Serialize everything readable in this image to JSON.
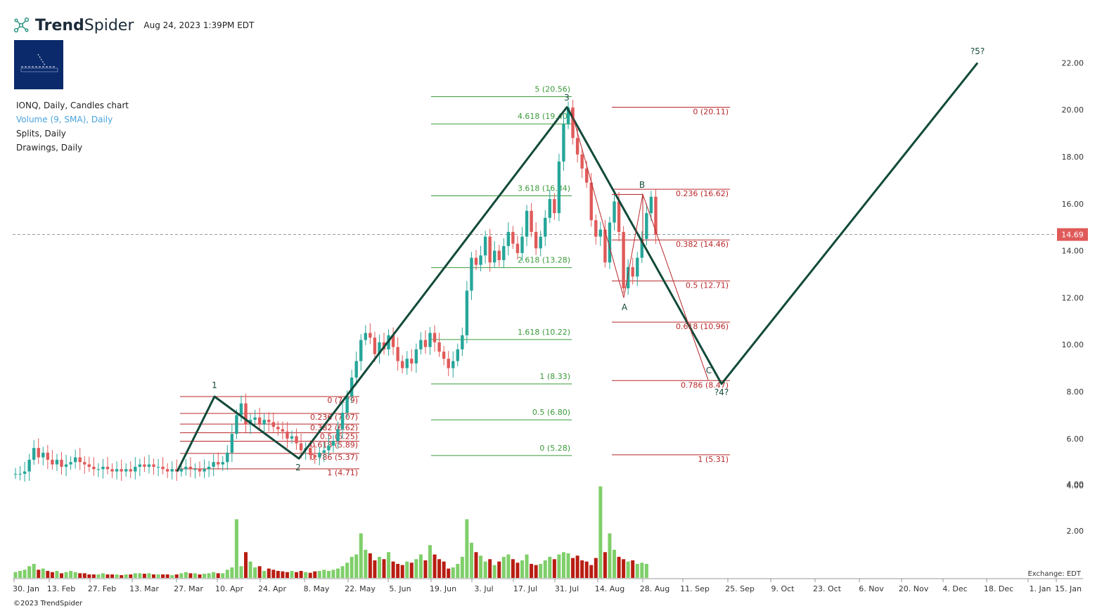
{
  "header": {
    "brand_bold": "Trend",
    "brand_regular": "Spider",
    "datetime": "Aug 24, 2023 1:39PM EDT"
  },
  "legend": {
    "symbol_line": "IONQ, Daily, Candles chart",
    "volume_line": "Volume (9, SMA), Daily",
    "splits_line": "Splits, Daily",
    "drawings_line": "Drawings, Daily"
  },
  "footer": {
    "copyright": "©2023 TrendSpider",
    "exchange": "Exchange: EDT"
  },
  "colors": {
    "up": "#26a69a",
    "down": "#e05a5a",
    "vol_up": "#7fcf6a",
    "vol_down": "#b81d12",
    "wave_line": "#124a3a",
    "fib_green": "#3a9a3a",
    "fib_red": "#b8282a",
    "price_tag": "#e05a5a"
  },
  "chart_data": {
    "type": "candlestick",
    "symbol": "IONQ",
    "interval": "Daily",
    "y_axis": {
      "range": [
        3.0,
        23.0
      ],
      "ticks": [
        "4.00",
        "6.00",
        "8.00",
        "10.00",
        "12.00",
        "14.00",
        "16.00",
        "18.00",
        "20.00",
        "22.00"
      ]
    },
    "x_axis": {
      "labels": [
        "30. Jan",
        "13. Feb",
        "27. Feb",
        "13. Mar",
        "27. Mar",
        "10. Apr",
        "24. Apr",
        "8. May",
        "22. May",
        "5. Jun",
        "19. Jun",
        "3. Jul",
        "17. Jul",
        "31. Jul",
        "14. Aug",
        "28. Aug",
        "11. Sep",
        "25. Sep",
        "9. Oct",
        "23. Oct",
        "6. Nov",
        "20. Nov",
        "4. Dec",
        "18. Dec",
        "1. Jan",
        "15. Jan"
      ]
    },
    "last_price": "14.69",
    "volume_axis": {
      "ticks": [
        "2.00",
        "4.00"
      ]
    },
    "candles_close": [
      4.5,
      4.5,
      4.6,
      5.1,
      5.6,
      5.2,
      5.4,
      5.1,
      4.9,
      5.1,
      4.8,
      4.9,
      5.0,
      5.2,
      5.0,
      4.9,
      4.8,
      4.7,
      4.7,
      4.8,
      4.7,
      4.6,
      4.7,
      4.6,
      4.7,
      4.6,
      4.8,
      4.9,
      4.8,
      4.9,
      4.8,
      4.8,
      4.7,
      4.6,
      4.7,
      4.6,
      4.7,
      4.8,
      4.7,
      4.7,
      4.6,
      4.7,
      4.8,
      5.0,
      4.9,
      5.0,
      5.4,
      6.2,
      7.0,
      7.5,
      6.6,
      6.8,
      6.9,
      6.6,
      6.8,
      6.7,
      6.5,
      6.4,
      6.3,
      6.0,
      6.1,
      5.8,
      5.5,
      5.6,
      5.3,
      5.2,
      5.4,
      5.5,
      5.7,
      5.9,
      6.4,
      7.1,
      7.8,
      8.6,
      9.3,
      10.2,
      10.5,
      10.3,
      9.6,
      10.1,
      9.8,
      10.4,
      9.9,
      9.3,
      9.0,
      9.4,
      9.2,
      9.8,
      10.2,
      9.9,
      10.5,
      10.1,
      9.7,
      9.4,
      9.0,
      9.3,
      9.8,
      10.4,
      12.3,
      13.7,
      13.4,
      13.8,
      14.6,
      13.5,
      14.0,
      13.6,
      14.2,
      14.8,
      14.3,
      13.9,
      14.6,
      15.7,
      14.8,
      14.1,
      14.6,
      15.4,
      16.2,
      15.6,
      17.8,
      19.4,
      20.1,
      18.8,
      18.1,
      17.5,
      16.9,
      15.3,
      14.6,
      14.9,
      13.5,
      15.2,
      16.1,
      14.8,
      12.4,
      13.3,
      12.9,
      13.7,
      14.5,
      15.6,
      16.3,
      14.69
    ],
    "volume": [
      0.25,
      0.3,
      0.35,
      0.5,
      0.6,
      0.35,
      0.4,
      0.3,
      0.25,
      0.3,
      0.2,
      0.25,
      0.3,
      0.25,
      0.2,
      0.2,
      0.15,
      0.15,
      0.15,
      0.2,
      0.15,
      0.15,
      0.15,
      0.12,
      0.15,
      0.15,
      0.2,
      0.2,
      0.18,
      0.2,
      0.15,
      0.15,
      0.15,
      0.15,
      0.12,
      0.15,
      0.2,
      0.25,
      0.2,
      0.2,
      0.15,
      0.18,
      0.2,
      0.25,
      0.2,
      0.2,
      0.35,
      0.45,
      2.5,
      0.5,
      1.1,
      0.7,
      0.45,
      0.5,
      0.3,
      0.4,
      0.35,
      0.3,
      0.28,
      0.25,
      0.3,
      0.25,
      0.3,
      0.25,
      0.22,
      0.28,
      0.3,
      0.35,
      0.3,
      0.35,
      0.4,
      0.5,
      0.65,
      0.9,
      1.0,
      1.9,
      1.2,
      1.05,
      0.75,
      0.9,
      0.8,
      1.1,
      0.7,
      0.6,
      0.55,
      0.7,
      0.65,
      0.8,
      1.0,
      0.75,
      1.4,
      1.0,
      0.8,
      0.7,
      0.4,
      0.45,
      0.6,
      0.9,
      2.5,
      1.5,
      1.1,
      0.95,
      0.7,
      0.8,
      0.55,
      0.7,
      0.9,
      1.0,
      0.8,
      0.65,
      0.75,
      1.0,
      0.6,
      0.55,
      0.6,
      0.75,
      0.9,
      0.8,
      1.0,
      1.1,
      1.05,
      0.85,
      0.95,
      0.75,
      0.7,
      0.55,
      0.85,
      3.9,
      1.1,
      1.9,
      1.2,
      0.9,
      0.8,
      0.7,
      0.75,
      0.6,
      0.65,
      0.6
    ],
    "fib_sets": [
      {
        "color": "red",
        "levels": [
          {
            "label": "0 (7.79)",
            "price": 7.79
          },
          {
            "label": "0.236 (7.07)",
            "price": 7.07
          },
          {
            "label": "0.382 (6.62)",
            "price": 6.62
          },
          {
            "label": "0.5 (6.25)",
            "price": 6.25
          },
          {
            "label": "0.618 (5.89)",
            "price": 5.89
          },
          {
            "label": "0.786 (5.37)",
            "price": 5.37
          },
          {
            "label": "1 (4.71)",
            "price": 4.71
          }
        ]
      },
      {
        "color": "green",
        "levels": [
          {
            "label": "5 (20.56)",
            "price": 20.56
          },
          {
            "label": "4.618 (19.40)",
            "price": 19.4
          },
          {
            "label": "3.618 (16.34)",
            "price": 16.34
          },
          {
            "label": "2.618 (13.28)",
            "price": 13.28
          },
          {
            "label": "1.618 (10.22)",
            "price": 10.22
          },
          {
            "label": "1 (8.33)",
            "price": 8.33
          },
          {
            "label": "0.5 (6.80)",
            "price": 6.8
          },
          {
            "label": "0 (5.28)",
            "price": 5.28
          }
        ]
      },
      {
        "color": "red",
        "levels": [
          {
            "label": "0 (20.11)",
            "price": 20.11
          },
          {
            "label": "0.236 (16.62)",
            "price": 16.62
          },
          {
            "label": "0.382 (14.46)",
            "price": 14.46
          },
          {
            "label": "0.5 (12.71)",
            "price": 12.71
          },
          {
            "label": "0.618 (10.96)",
            "price": 10.96
          },
          {
            "label": "0.786 (8.47)",
            "price": 8.47
          },
          {
            "label": "1 (5.31)",
            "price": 5.31
          }
        ]
      }
    ],
    "wave_labels": [
      {
        "label": "1",
        "price": 7.79
      },
      {
        "label": "2",
        "price": 5.28
      },
      {
        "label": "3",
        "price": 20.11
      },
      {
        "label": "A",
        "price": 12.0
      },
      {
        "label": "B",
        "price": 16.4
      },
      {
        "label": "C",
        "price": 8.8
      },
      {
        "label": "?4?",
        "price": 8.33
      },
      {
        "label": "?5?",
        "price": 22.0
      }
    ]
  }
}
